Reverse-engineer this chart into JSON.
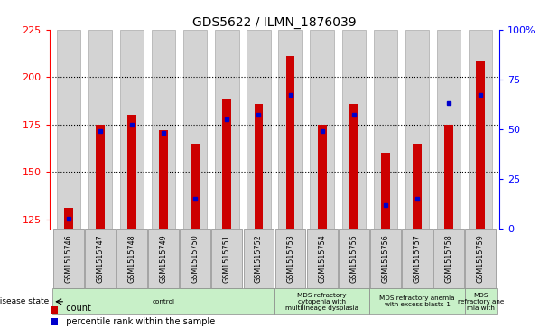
{
  "title": "GDS5622 / ILMN_1876039",
  "samples": [
    "GSM1515746",
    "GSM1515747",
    "GSM1515748",
    "GSM1515749",
    "GSM1515750",
    "GSM1515751",
    "GSM1515752",
    "GSM1515753",
    "GSM1515754",
    "GSM1515755",
    "GSM1515756",
    "GSM1515757",
    "GSM1515758",
    "GSM1515759"
  ],
  "counts": [
    131,
    175,
    180,
    172,
    165,
    188,
    186,
    211,
    175,
    186,
    160,
    165,
    175,
    208
  ],
  "percentile_ranks": [
    5,
    49,
    52,
    48,
    15,
    55,
    57,
    67,
    49,
    57,
    12,
    15,
    63,
    67
  ],
  "ylim_left": [
    120,
    225
  ],
  "ylim_right": [
    0,
    100
  ],
  "yticks_left": [
    125,
    150,
    175,
    200,
    225
  ],
  "yticks_right": [
    0,
    25,
    50,
    75,
    100
  ],
  "bar_color": "#cc0000",
  "dot_color": "#0000cc",
  "background_color": "#ffffff",
  "bar_bg_color": "#d3d3d3",
  "disease_groups": [
    {
      "label": "control",
      "start": 0,
      "end": 7,
      "color": "#c8f0c8"
    },
    {
      "label": "MDS refractory\ncytopenia with\nmultilineage dysplasia",
      "start": 7,
      "end": 10,
      "color": "#c8f0c8"
    },
    {
      "label": "MDS refractory anemia\nwith excess blasts-1",
      "start": 10,
      "end": 13,
      "color": "#c8f0c8"
    },
    {
      "label": "MDS\nrefractory ane\nmia with",
      "start": 13,
      "end": 14,
      "color": "#c8f0c8"
    }
  ]
}
